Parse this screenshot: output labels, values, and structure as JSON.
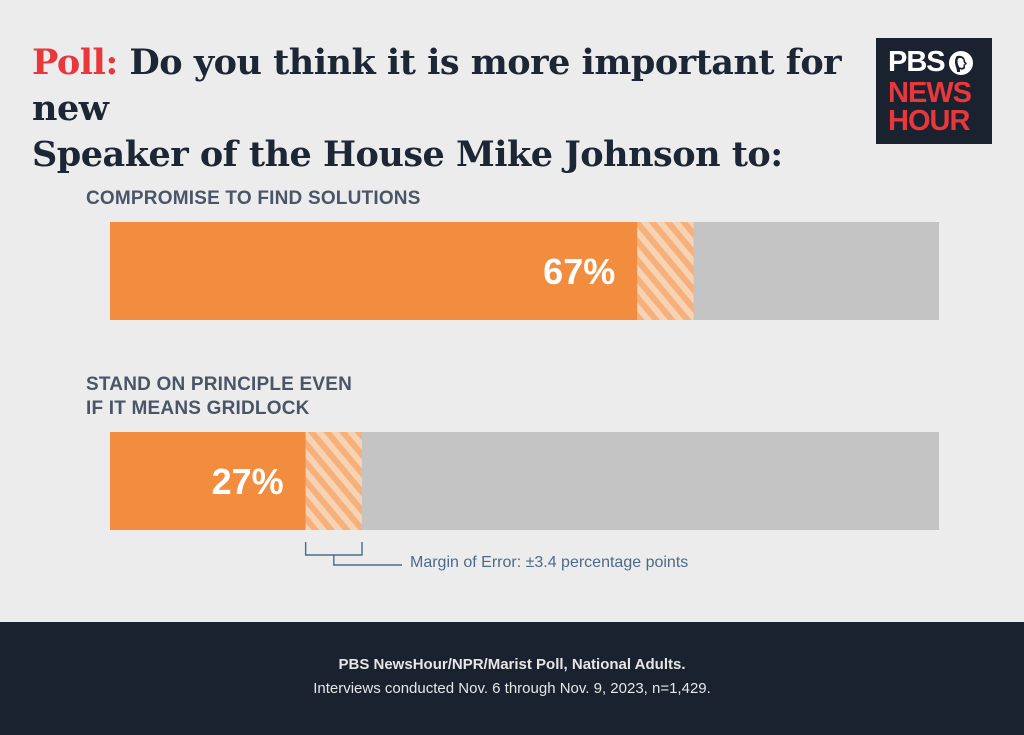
{
  "header": {
    "title_prefix": "Poll:",
    "title_line1": " Do you think it is more important for new",
    "title_line2": "Speaker of the House Mike Johnson to:"
  },
  "logo": {
    "line1": "PBS",
    "line2": "NEWS",
    "line3": "HOUR",
    "icon": "pbs-head-icon"
  },
  "chart_data": {
    "type": "bar",
    "orientation": "horizontal",
    "categories": [
      "COMPROMISE TO FIND SOLUTIONS",
      "STAND ON PRINCIPLE EVEN IF IT MEANS GRIDLOCK"
    ],
    "category_lines": [
      [
        "COMPROMISE TO FIND SOLUTIONS"
      ],
      [
        "STAND ON PRINCIPLE EVEN",
        "IF IT MEANS GRIDLOCK"
      ]
    ],
    "values": [
      67,
      27
    ],
    "value_labels": [
      "67%",
      "27%"
    ],
    "xlim": [
      0,
      100
    ],
    "margin_of_error": 3.4,
    "margin_of_error_label": "Margin of Error: ±3.4 percentage points",
    "colors": {
      "bar": "#f28c3f",
      "track": "#c4c4c4",
      "hatch": "#f6c29a",
      "label": "#ffffff"
    }
  },
  "footer": {
    "source": "PBS NewsHour/NPR/Marist Poll, National Adults.",
    "details": "Interviews conducted Nov. 6 through Nov. 9, 2023, n=1,429."
  }
}
